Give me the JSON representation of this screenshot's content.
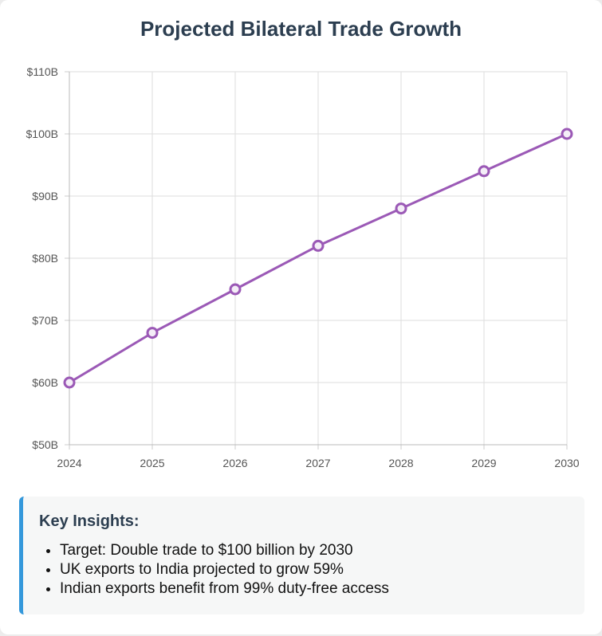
{
  "title": "Projected Bilateral Trade Growth",
  "chart_data": {
    "type": "line",
    "title": "Projected Bilateral Trade Growth",
    "x": [
      "2024",
      "2025",
      "2026",
      "2027",
      "2028",
      "2029",
      "2030"
    ],
    "y_ticks": [
      "$50B",
      "$60B",
      "$70B",
      "$80B",
      "$90B",
      "$100B",
      "$110B"
    ],
    "ylim": [
      50,
      110
    ],
    "grid": true,
    "series": [
      {
        "values": [
          60,
          68,
          75,
          82,
          88,
          94,
          100
        ],
        "color": "#9b59b6"
      }
    ]
  },
  "insights": {
    "heading": "Key Insights:",
    "items": [
      "Target: Double trade to $100 billion by 2030",
      "UK exports to India projected to grow 59%",
      "Indian exports benefit from 99% duty-free access"
    ],
    "accent_color": "#3498db"
  }
}
